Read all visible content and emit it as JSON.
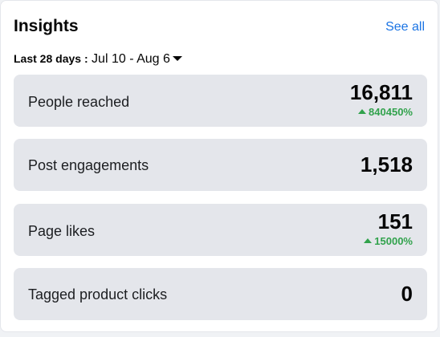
{
  "header": {
    "title": "Insights",
    "see_all_label": "See all"
  },
  "range": {
    "label": "Last 28 days :",
    "value": " Jul 10 - Aug 6"
  },
  "metrics": [
    {
      "label": "People reached",
      "value": "16,811",
      "change": "840450%"
    },
    {
      "label": "Post engagements",
      "value": "1,518"
    },
    {
      "label": "Page likes",
      "value": "151",
      "change": "15000%"
    },
    {
      "label": "Tagged product clicks",
      "value": "0"
    }
  ],
  "colors": {
    "accent": "#1b74e4",
    "positive": "#31a24c",
    "tile_bg": "#e4e6eb"
  },
  "icons": {
    "range_dropdown": "caret-down-icon",
    "change_up": "triangle-up-icon"
  }
}
